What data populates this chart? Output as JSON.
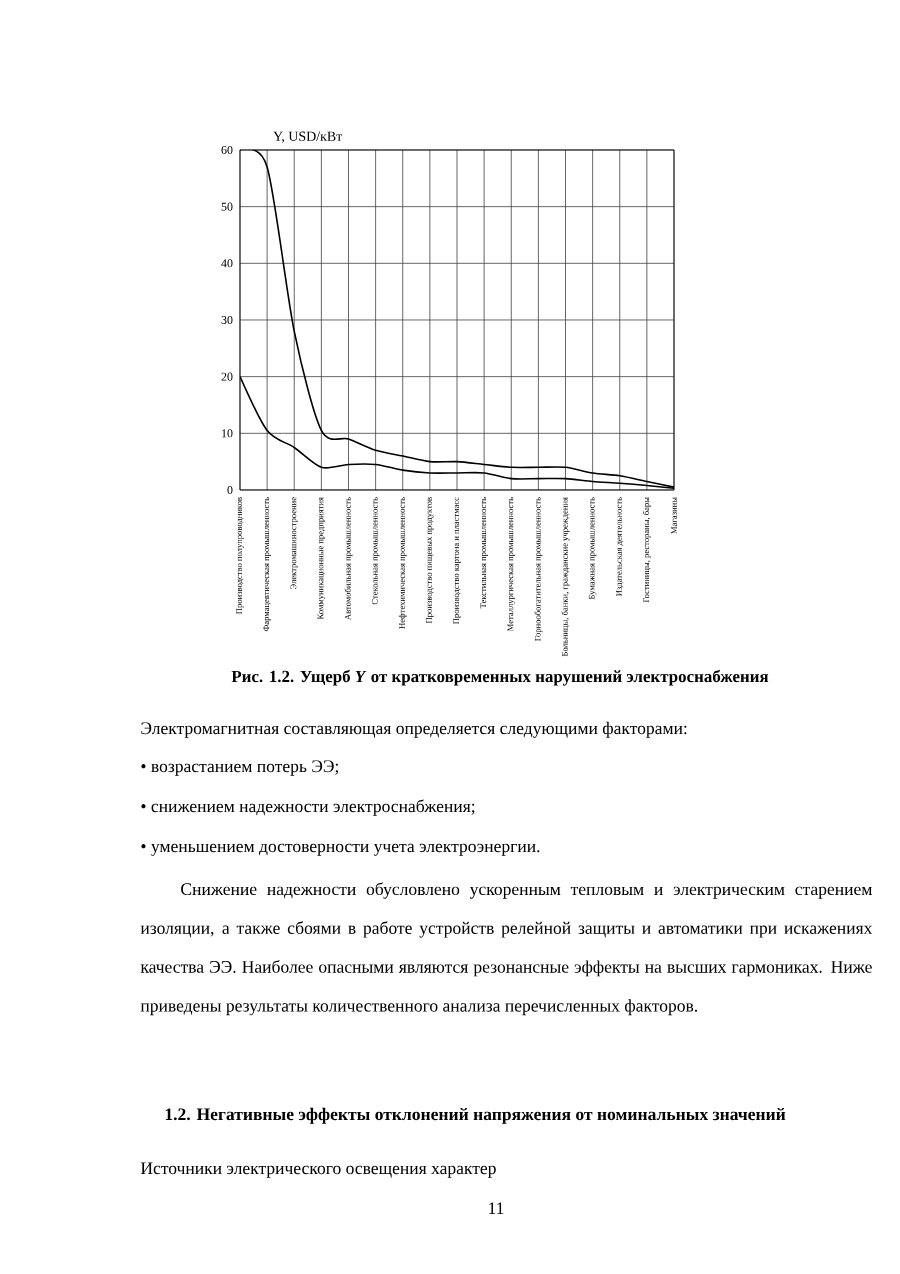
{
  "chart_data": {
    "type": "line",
    "title": "Рис. 1.2. Ущерб *Y* от кратковременных нарушений электроснабжения",
    "ylabel": "Y, USD/кВт",
    "categories": [
      "Производство полупроводников",
      "Фармацевтическая промышленность",
      "Электромашиностроение",
      "Коммуникационные предприятия",
      "Автомобильная промышленность",
      "Стекольная промышленность",
      "Нефтехимическая промышленность",
      "Производство пищевых продуктов",
      "Производство картона и пластмасс",
      "Текстильная промышленность",
      "Металлургическая промышленность",
      "Горнообогатительная промышленность",
      "Больницы, банки, гражданские учреждения",
      "Бумажная промышленность",
      "Издательская деятельность",
      "Гостиницы, рестораны, бары",
      "Магазины"
    ],
    "series": [
      {
        "color": "#000000",
        "values": [
          60,
          57,
          28,
          10.5,
          9,
          7,
          6,
          5,
          5,
          4.5,
          4,
          4,
          4,
          3,
          2.5,
          1.5,
          0.5
        ]
      },
      {
        "color": "#000000",
        "values": [
          20,
          10.5,
          7.5,
          4,
          4.5,
          4.5,
          3.5,
          3,
          3,
          3,
          2,
          2,
          2,
          1.5,
          1.2,
          0.8,
          0.3
        ]
      }
    ],
    "ylim": [
      0,
      60
    ],
    "yticks": [
      0,
      10,
      20,
      30,
      40,
      50,
      60
    ],
    "grid": true,
    "marker": "none",
    "line_style": "solid",
    "annotations": [
      "Электромагнитная составляющая определяется следующими факторами:",
      "• возрастанием потерь ЭЭ;",
      "• снижением надежности электроснабжения;",
      "• уменьшением достоверности учета электроэнергии.",
      "Снижение надежности обусловлено ускоренным тепловым и электрическим старением изоляции, а также сбоями в работе устройств релейной защиты и автоматики при искажениях качества ЭЭ. Наиболее опасными являются резонансные эффекты на высших гармониках. Ниже приведены результаты количественного анализа перечисленных факторов.",
      "**1.2. Негативные эффекты отклонений напряжения от номинальных значений**",
      "Источники электрического освещения характер",
      "11"
    ]
  }
}
